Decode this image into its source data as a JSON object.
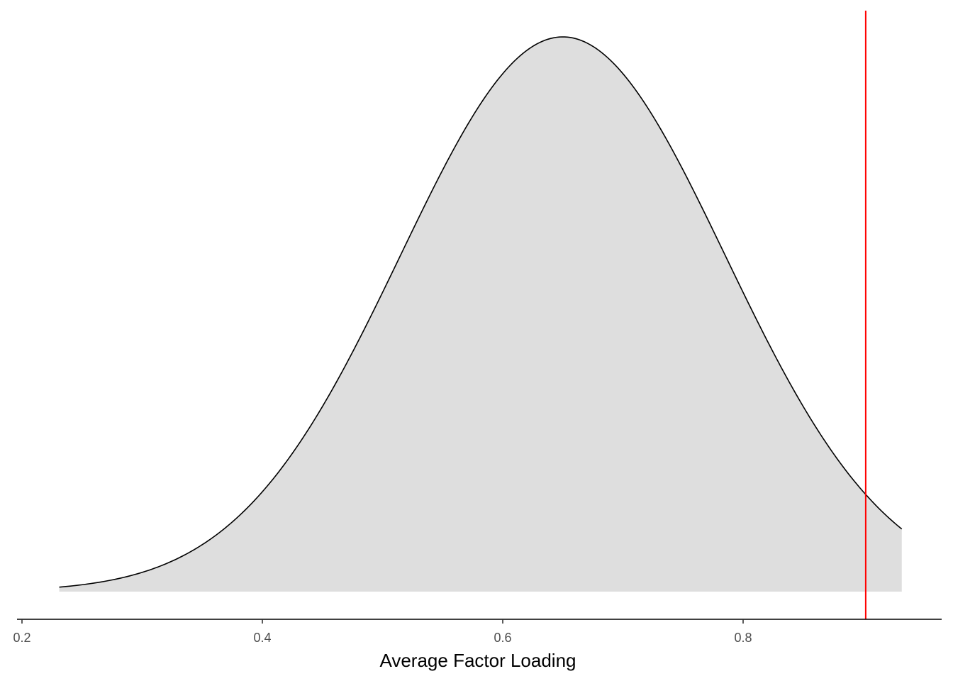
{
  "chart_data": {
    "type": "area",
    "title": "",
    "xlabel": "Average Factor Loading",
    "ylabel": "",
    "xlim": [
      0.2,
      0.96
    ],
    "x_ticks": [
      0.2,
      0.4,
      0.6,
      0.8
    ],
    "x_tick_labels": [
      "0.2",
      "0.4",
      "0.6",
      "0.8"
    ],
    "y_axis_shown": false,
    "grid": false,
    "legend": "none",
    "series": [
      {
        "kind": "density",
        "x_range": [
          0.231,
          0.932
        ],
        "mean": 0.65,
        "sd": 0.135,
        "fill": "#dedede",
        "stroke": "#000000"
      }
    ],
    "reference_line": {
      "x": 0.902,
      "color": "#ff0000"
    }
  }
}
